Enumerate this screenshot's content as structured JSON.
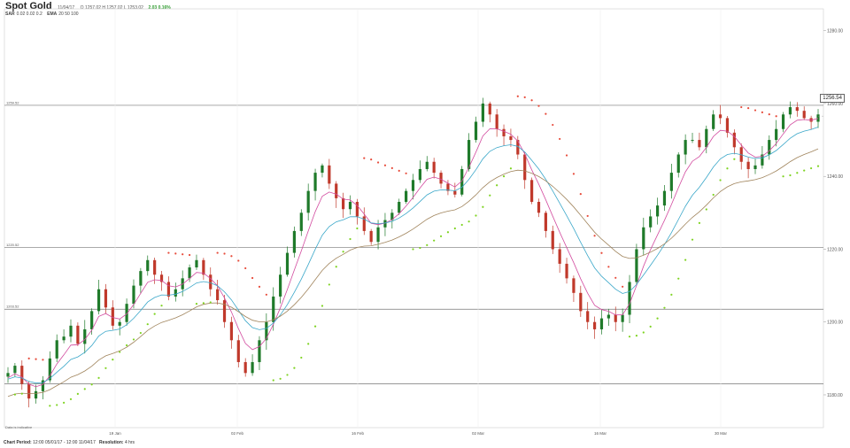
{
  "header": {
    "title": "Spot Gold",
    "ohlc": "O 1257.02 H 1257.02 L 1253.02",
    "date": "11/04/17",
    "change": "2.03 0.16%"
  },
  "indicators": {
    "sar_label": "SAR",
    "sar_values": "0.02  0.02  0.2",
    "ema_label": "EMA",
    "ema_values": "20  50  100"
  },
  "footer": {
    "period_label": "Chart Period:",
    "period_value": "12:00 05/01/17 - 12:00 11/04/17",
    "resolution_label": "Resolution:",
    "resolution_value": "4 hrs",
    "delay_note": "Data is indicative"
  },
  "last_price": "1256.54",
  "colors": {
    "up": "#1f7a2a",
    "down": "#c0392b",
    "sar_up": "#7ed321",
    "sar_down": "#e74c3c",
    "ema20": "#d24b9f",
    "ema50": "#3aa7c9",
    "ema100": "#a0845c",
    "grid": "#888888"
  },
  "chart_data": {
    "type": "candlestick",
    "title": "Spot Gold",
    "y_ticks": [
      1180,
      1200,
      1220,
      1240,
      1260,
      1280
    ],
    "y_tick_labels": [
      "1180.00",
      "1200.00",
      "1220.00",
      "1240.00",
      "1260.00",
      "1280.00"
    ],
    "ylim": [
      1171,
      1286
    ],
    "x_ticks": [
      "19 Jan",
      "02 Feb",
      "16 Feb",
      "02 Mar",
      "16 Mar",
      "30 Mar"
    ],
    "horizontal_lines": [
      {
        "value": 1259.52,
        "label": "1259.52"
      },
      {
        "value": 1220.52,
        "label": "1220.52"
      },
      {
        "value": 1203.52,
        "label": "1203.52"
      },
      {
        "value": 1183.0,
        "label": ""
      }
    ],
    "series": [
      {
        "name": "Price",
        "values": [
          1186,
          1188,
          1183,
          1179,
          1181,
          1184,
          1190,
          1195,
          1196,
          1199,
          1194,
          1198,
          1203,
          1209,
          1204,
          1199,
          1200,
          1205,
          1210,
          1214,
          1217,
          1213,
          1211,
          1207,
          1209,
          1212,
          1215,
          1217,
          1213,
          1209,
          1206,
          1200,
          1195,
          1189,
          1186,
          1189,
          1195,
          1200,
          1207,
          1213,
          1219,
          1225,
          1230,
          1236,
          1241,
          1243,
          1238,
          1234,
          1231,
          1233,
          1229,
          1225,
          1222,
          1226,
          1228,
          1230,
          1233,
          1236,
          1239,
          1242,
          1244,
          1241,
          1238,
          1236,
          1235,
          1242,
          1250,
          1255,
          1260,
          1257,
          1253,
          1251,
          1250,
          1246,
          1239,
          1233,
          1230,
          1225,
          1220,
          1216,
          1212,
          1208,
          1203,
          1200,
          1198,
          1201,
          1202,
          1200,
          1202,
          1211,
          1220,
          1226,
          1229,
          1232,
          1236,
          1241,
          1246,
          1250,
          1250,
          1248,
          1253,
          1257,
          1256,
          1252,
          1248,
          1244,
          1242,
          1243,
          1246,
          1250,
          1253,
          1257,
          1259,
          1258,
          1256,
          1255,
          1257
        ]
      }
    ],
    "ema_series": [
      "EMA 20",
      "EMA 50",
      "EMA 100"
    ],
    "sar_series": "SAR"
  }
}
